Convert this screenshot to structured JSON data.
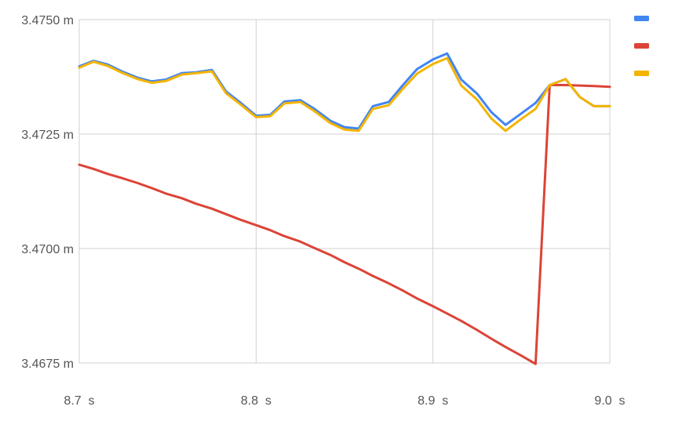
{
  "chart_data": {
    "type": "line",
    "title": "",
    "xlabel": "",
    "ylabel": "",
    "xlim": [
      8.7,
      9.0
    ],
    "ylim": [
      3.4675,
      3.475
    ],
    "x_ticks": [
      {
        "value": 8.7,
        "label": "8.7  s"
      },
      {
        "value": 8.8,
        "label": "8.8  s"
      },
      {
        "value": 8.9,
        "label": "8.9  s"
      },
      {
        "value": 9.0,
        "label": "9.0  s"
      }
    ],
    "y_ticks": [
      {
        "value": 3.475,
        "label": "3.4750 m"
      },
      {
        "value": 3.4725,
        "label": "3.4725 m"
      },
      {
        "value": 3.47,
        "label": "3.4700 m"
      },
      {
        "value": 3.4675,
        "label": "3.4675 m"
      }
    ],
    "grid": true,
    "legend": {
      "placement": "top-right"
    },
    "series": [
      {
        "color": "#4285F4",
        "x": [
          8.7,
          8.708,
          8.716,
          8.724,
          8.733,
          8.741,
          8.749,
          8.758,
          8.766,
          8.775,
          8.783,
          8.791,
          8.8,
          8.808,
          8.816,
          8.825,
          8.833,
          8.842,
          8.85,
          8.858,
          8.866,
          8.875,
          8.883,
          8.891,
          8.9,
          8.908,
          8.916,
          8.925,
          8.933,
          8.941,
          8.95,
          8.958,
          8.966,
          8.975,
          8.983,
          8.991,
          9.0
        ],
        "y": [
          3.47398,
          3.4741,
          3.47402,
          3.47387,
          3.47373,
          3.47365,
          3.47369,
          3.47383,
          3.47385,
          3.4739,
          3.47343,
          3.47319,
          3.4729,
          3.47292,
          3.47321,
          3.47324,
          3.47305,
          3.47279,
          3.47265,
          3.47262,
          3.47311,
          3.4732,
          3.47357,
          3.47392,
          3.47413,
          3.47426,
          3.47369,
          3.47338,
          3.47298,
          3.4727,
          3.47295,
          3.47318,
          3.47357,
          3.4737,
          3.47331,
          3.47311,
          3.47311
        ]
      },
      {
        "color": "#DB4437",
        "x": [
          8.7,
          8.708,
          8.716,
          8.724,
          8.733,
          8.741,
          8.749,
          8.758,
          8.766,
          8.775,
          8.783,
          8.791,
          8.8,
          8.808,
          8.816,
          8.825,
          8.833,
          8.842,
          8.85,
          8.858,
          8.866,
          8.875,
          8.883,
          8.891,
          8.9,
          8.908,
          8.916,
          8.925,
          8.933,
          8.941,
          8.95,
          8.958,
          8.966,
          8.975,
          8.983,
          8.991,
          9.0
        ],
        "y": [
          3.47183,
          3.47174,
          3.47163,
          3.47154,
          3.47143,
          3.47132,
          3.4712,
          3.4711,
          3.47098,
          3.47087,
          3.47075,
          3.47063,
          3.47051,
          3.4704,
          3.47027,
          3.47015,
          3.47001,
          3.46986,
          3.4697,
          3.46956,
          3.4694,
          3.46924,
          3.46908,
          3.46891,
          3.46874,
          3.46858,
          3.46842,
          3.46822,
          3.46803,
          3.46785,
          3.46766,
          3.46748,
          3.47357,
          3.47357,
          3.47356,
          3.47355,
          3.47353
        ]
      },
      {
        "color": "#F4B400",
        "x": [
          8.7,
          8.708,
          8.716,
          8.724,
          8.733,
          8.741,
          8.749,
          8.758,
          8.766,
          8.775,
          8.783,
          8.791,
          8.8,
          8.808,
          8.816,
          8.825,
          8.833,
          8.842,
          8.85,
          8.858,
          8.866,
          8.875,
          8.883,
          8.891,
          8.9,
          8.908,
          8.916,
          8.925,
          8.933,
          8.941,
          8.95,
          8.958,
          8.966,
          8.975,
          8.983,
          8.991,
          9.0
        ],
        "y": [
          3.47395,
          3.47408,
          3.47399,
          3.47384,
          3.4737,
          3.47362,
          3.47366,
          3.4738,
          3.47383,
          3.47387,
          3.47339,
          3.47315,
          3.47287,
          3.47289,
          3.47317,
          3.4732,
          3.473,
          3.47274,
          3.4726,
          3.47257,
          3.47305,
          3.47313,
          3.47349,
          3.47382,
          3.47403,
          3.47416,
          3.47356,
          3.47325,
          3.47284,
          3.47257,
          3.47283,
          3.47305,
          3.47357,
          3.4737,
          3.47331,
          3.47311,
          3.47311
        ]
      }
    ]
  }
}
